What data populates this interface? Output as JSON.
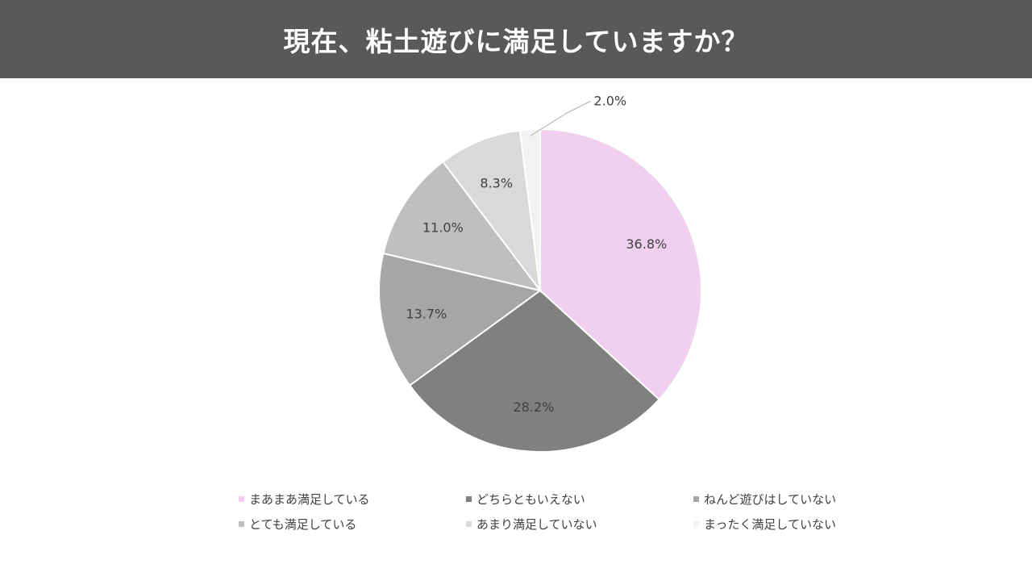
{
  "title": "現在、粘土遊びに満足していますか？",
  "colors": {
    "title_bar": "#595959",
    "title_text": "#ffffff",
    "slice_border": "#ffffff",
    "label_text": "#404040"
  },
  "chart_data": {
    "type": "pie",
    "title": "現在、粘土遊びに満足していますか？",
    "legend_position": "bottom",
    "slices": [
      {
        "name": "まあまあ満足している",
        "value": 36.8,
        "label": "36.8%",
        "color": "#f0d0ee"
      },
      {
        "name": "どちらともいえない",
        "value": 28.2,
        "label": "28.2%",
        "color": "#808080"
      },
      {
        "name": "ねんど遊びはしていない",
        "value": 13.7,
        "label": "13.7%",
        "color": "#a6a6a6"
      },
      {
        "name": "とても満足している",
        "value": 11.0,
        "label": "11.0%",
        "color": "#bfbfbf"
      },
      {
        "name": "あまり満足していない",
        "value": 8.3,
        "label": "8.3%",
        "color": "#d9d9d9"
      },
      {
        "name": "まったく満足していない",
        "value": 2.0,
        "label": "2.0%",
        "color": "#f2f2f2"
      }
    ]
  }
}
